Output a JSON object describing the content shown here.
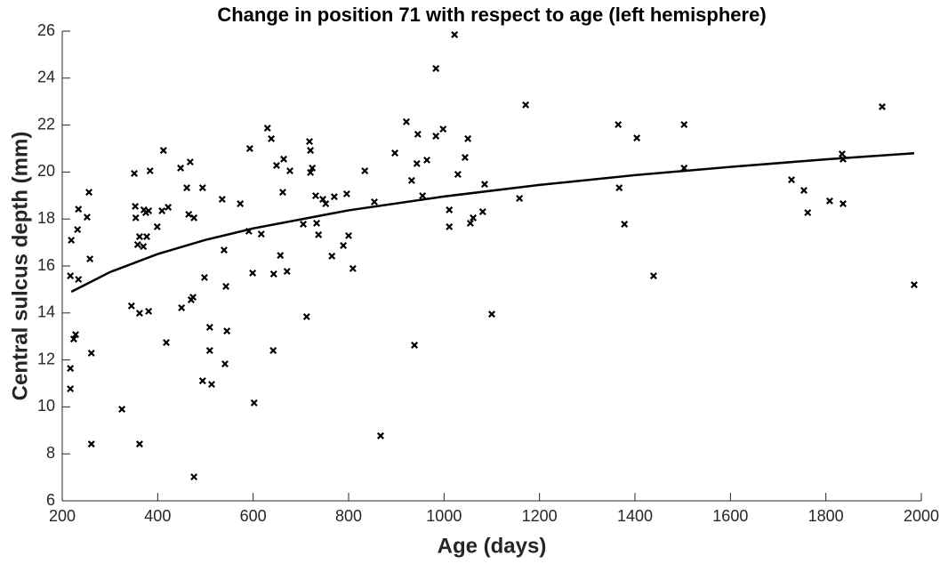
{
  "chart_data": {
    "type": "scatter",
    "title": "Change in position 71 with respect to age (left hemisphere)",
    "x_label": "Age (days)",
    "y_label": "Central sulcus depth (mm)",
    "xlim": [
      200,
      2000
    ],
    "xticks": [
      200,
      400,
      600,
      800,
      1000,
      1200,
      1400,
      1600,
      1800,
      2000
    ],
    "ylim": [
      6,
      26
    ],
    "yticks": [
      6,
      8,
      10,
      12,
      14,
      16,
      18,
      20,
      22,
      24,
      26
    ],
    "grid": false,
    "series": [
      {
        "color": "#000000",
        "marker": "x",
        "x": [
          217,
          219,
          217,
          217,
          224,
          228,
          232,
          234,
          234,
          252,
          256,
          258,
          261,
          261,
          325,
          345,
          351,
          353,
          354,
          358,
          362,
          362,
          362,
          370,
          371,
          375,
          377,
          381,
          381,
          384,
          399,
          409,
          412,
          418,
          422,
          448,
          450,
          461,
          465,
          468,
          470,
          474,
          476,
          476,
          494,
          494,
          498,
          509,
          509,
          513,
          535,
          539,
          541,
          543,
          545,
          573,
          591,
          593,
          599,
          602,
          617,
          630,
          638,
          642,
          643,
          649,
          657,
          662,
          664,
          671,
          677,
          705,
          712,
          718,
          720,
          720,
          724,
          731,
          733,
          737,
          746,
          752,
          765,
          770,
          789,
          796,
          800,
          809,
          834,
          854,
          867,
          897,
          921,
          932,
          938,
          943,
          945,
          955,
          964,
          983,
          983,
          998,
          1011,
          1011,
          1022,
          1029,
          1044,
          1050,
          1055,
          1061,
          1081,
          1085,
          1100,
          1158,
          1171,
          1365,
          1367,
          1378,
          1404,
          1439,
          1503,
          1503,
          1728,
          1754,
          1762,
          1808,
          1834,
          1836,
          1836,
          1918,
          1985
        ],
        "values": [
          15.58,
          17.1,
          11.64,
          10.77,
          12.89,
          13.08,
          17.55,
          18.42,
          15.43,
          18.08,
          19.14,
          16.3,
          12.29,
          8.42,
          9.9,
          14.3,
          19.94,
          18.54,
          18.05,
          16.91,
          17.25,
          13.99,
          8.42,
          16.83,
          18.39,
          18.27,
          17.25,
          18.35,
          14.07,
          20.05,
          17.67,
          18.35,
          20.92,
          12.74,
          18.5,
          20.17,
          14.22,
          19.33,
          18.2,
          20.43,
          14.56,
          14.67,
          18.05,
          7.02,
          19.33,
          11.11,
          15.51,
          13.39,
          12.4,
          10.96,
          18.84,
          16.68,
          11.83,
          15.13,
          13.23,
          18.65,
          17.48,
          21.0,
          15.7,
          10.17,
          17.36,
          21.87,
          21.42,
          12.4,
          15.66,
          20.28,
          16.45,
          19.14,
          20.55,
          15.77,
          20.05,
          17.78,
          13.84,
          21.3,
          20.92,
          19.98,
          20.17,
          18.99,
          17.82,
          17.33,
          18.84,
          18.65,
          16.42,
          18.95,
          16.87,
          19.07,
          17.29,
          15.89,
          20.05,
          18.73,
          8.77,
          20.81,
          22.14,
          19.64,
          12.63,
          20.36,
          21.61,
          18.99,
          20.51,
          24.41,
          21.53,
          21.83,
          18.39,
          17.67,
          25.85,
          19.9,
          20.62,
          21.42,
          17.82,
          18.05,
          18.31,
          19.48,
          13.95,
          18.88,
          22.86,
          22.02,
          19.33,
          17.78,
          21.45,
          15.58,
          22.02,
          20.17,
          19.67,
          19.22,
          18.27,
          18.77,
          20.77,
          20.55,
          18.65,
          22.78,
          15.2
        ]
      },
      {
        "color": "#000000",
        "marker": "none",
        "line": true,
        "x": [
          219,
          300,
          400,
          500,
          600,
          800,
          1000,
          1200,
          1400,
          1600,
          1800,
          1985
        ],
        "values": [
          14.9,
          15.74,
          16.51,
          17.11,
          17.6,
          18.37,
          18.96,
          19.45,
          19.87,
          20.22,
          20.54,
          20.8
        ]
      }
    ]
  }
}
